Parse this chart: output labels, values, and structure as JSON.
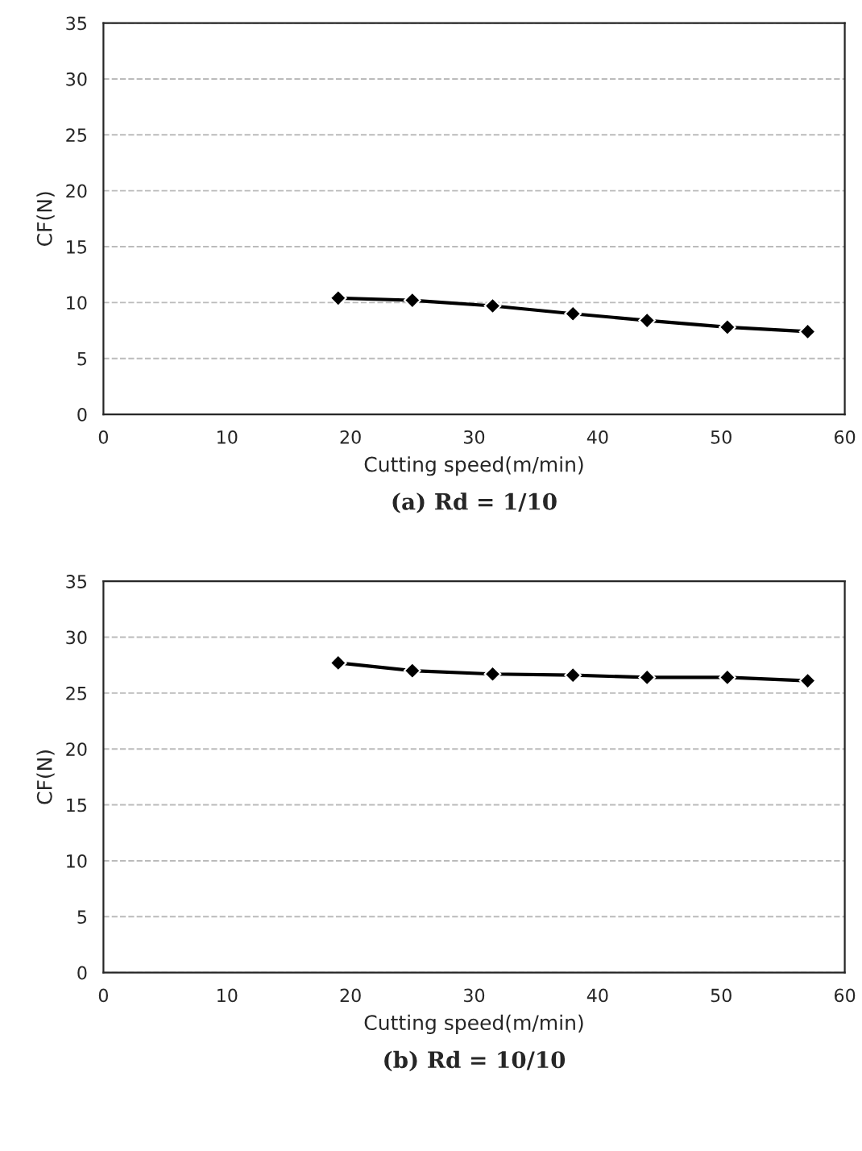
{
  "chart_data": [
    {
      "type": "line",
      "xlabel": "Cutting speed(m/min)",
      "ylabel": "CF(N)",
      "annotations": [
        "(a) Rd = 1/10"
      ],
      "x": [
        19,
        25,
        31.5,
        38,
        44,
        50.5,
        57
      ],
      "series": [
        {
          "color": "#000000",
          "values": [
            10.4,
            10.2,
            9.7,
            9.0,
            8.4,
            7.8,
            7.4
          ]
        }
      ],
      "xlim": [
        0,
        60
      ],
      "xticks": [
        0,
        10,
        20,
        30,
        40,
        50,
        60
      ],
      "ylim": [
        0,
        35
      ],
      "yticks": [
        0,
        5,
        10,
        15,
        20,
        25,
        30,
        35
      ],
      "grid": "y",
      "marker": "diamond",
      "line_style": "solid"
    },
    {
      "type": "line",
      "xlabel": "Cutting speed(m/min)",
      "ylabel": "CF(N)",
      "annotations": [
        "(b) Rd = 10/10"
      ],
      "x": [
        19,
        25,
        31.5,
        38,
        44,
        50.5,
        57
      ],
      "series": [
        {
          "color": "#000000",
          "values": [
            27.7,
            27.0,
            26.7,
            26.6,
            26.4,
            26.4,
            26.1
          ]
        }
      ],
      "xlim": [
        0,
        60
      ],
      "xticks": [
        0,
        10,
        20,
        30,
        40,
        50,
        60
      ],
      "ylim": [
        0,
        35
      ],
      "yticks": [
        0,
        5,
        10,
        15,
        20,
        25,
        30,
        35
      ],
      "grid": "y",
      "marker": "diamond",
      "line_style": "solid"
    }
  ]
}
